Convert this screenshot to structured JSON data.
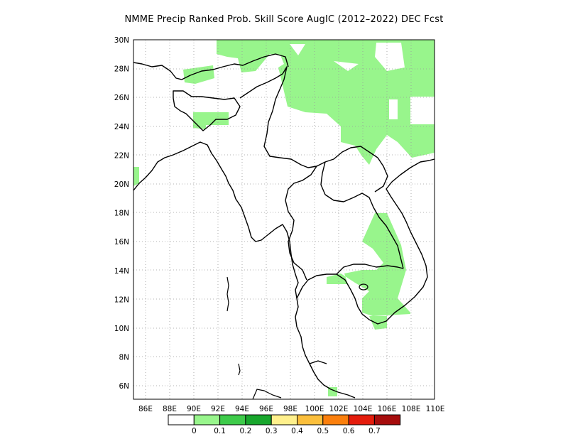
{
  "title": "NMME Precip Ranked Prob. Skill Score AugIC (2012–2022) DEC Fcst",
  "map": {
    "lon_labels": [
      "86E",
      "88E",
      "90E",
      "92E",
      "94E",
      "96E",
      "98E",
      "100E",
      "102E",
      "104E",
      "106E",
      "108E",
      "110E"
    ],
    "lat_labels": [
      "30N",
      "28N",
      "26N",
      "24N",
      "22N",
      "20N",
      "18N",
      "16N",
      "14N",
      "12N",
      "10N",
      "8N",
      "6N"
    ],
    "fill_color": "#98f58c",
    "grid": "dotted"
  },
  "colorbar": {
    "colors": [
      "#ffffff",
      "#98f58c",
      "#3ecb4a",
      "#18a62c",
      "#fff08c",
      "#fbbf3c",
      "#fb7f0c",
      "#e41c0c",
      "#a60c0c"
    ],
    "labels": [
      "0",
      "0.1",
      "0.2",
      "0.3",
      "0.4",
      "0.5",
      "0.6",
      "0.7"
    ]
  }
}
